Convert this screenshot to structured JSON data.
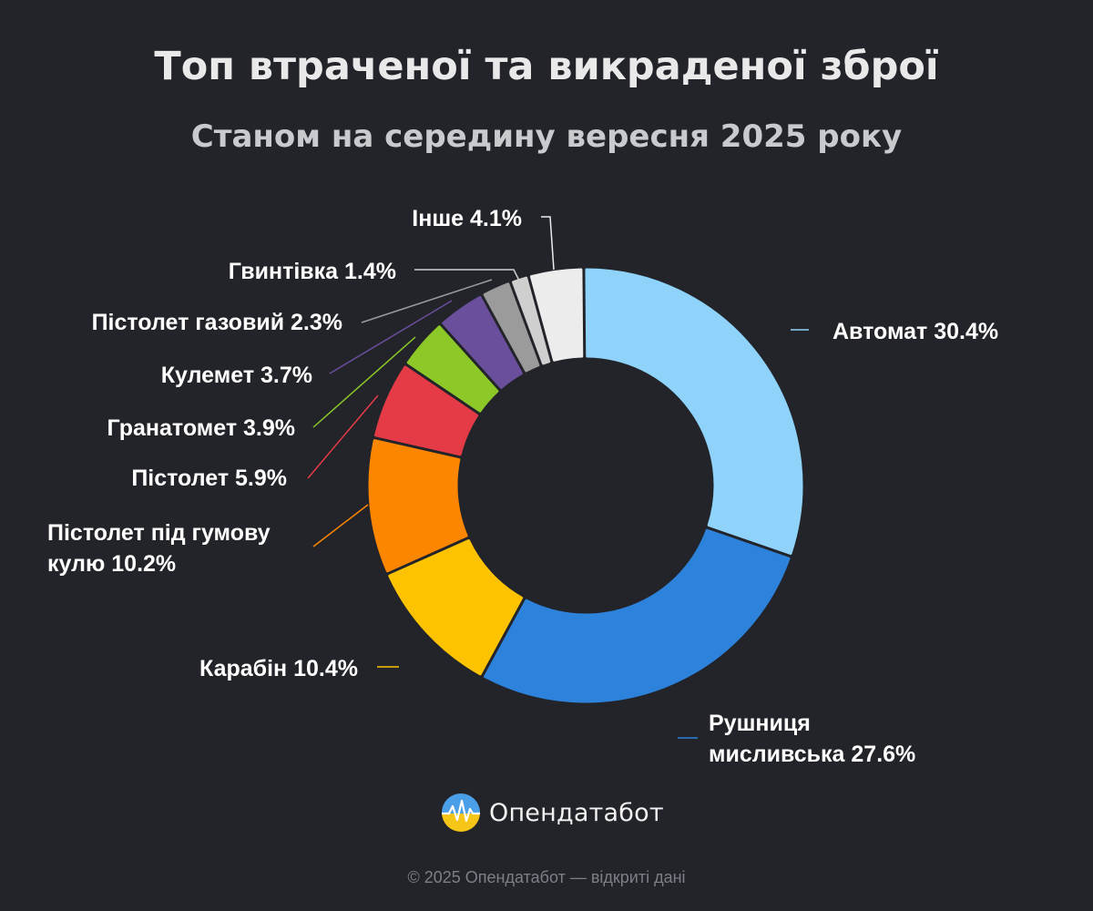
{
  "header": {
    "title": "Топ втраченої та викраденої зброї",
    "subtitle": "Станом на середину вересня 2025 року"
  },
  "chart_data": {
    "type": "pie",
    "variant": "donut",
    "title": "Топ втраченої та викраденої зброї",
    "subtitle": "Станом на середину вересня 2025 року",
    "unit": "%",
    "legend": "none",
    "slices": [
      {
        "name": "Автомат",
        "value": 30.4,
        "color": "#8fd3fb",
        "label": [
          "Автомат 30.4%"
        ]
      },
      {
        "name": "Рушниця мисливська",
        "value": 27.6,
        "color": "#2d82db",
        "label": [
          "Рушниця",
          "мисливська 27.6%"
        ]
      },
      {
        "name": "Карабін",
        "value": 10.4,
        "color": "#fdc300",
        "label": [
          "Карабін 10.4%"
        ]
      },
      {
        "name": "Пістолет під гумову кулю",
        "value": 10.2,
        "color": "#fd8601",
        "label": [
          "Пістолет під гумову",
          "кулю 10.2%"
        ]
      },
      {
        "name": "Пістолет",
        "value": 5.9,
        "color": "#e53b46",
        "label": [
          "Пістолет 5.9%"
        ]
      },
      {
        "name": "Гранатомет",
        "value": 3.9,
        "color": "#8cc928",
        "label": [
          "Гранатомет 3.9%"
        ]
      },
      {
        "name": "Кулемет",
        "value": 3.7,
        "color": "#6a4f9d",
        "label": [
          "Кулемет 3.7%"
        ]
      },
      {
        "name": "Пістолет газовий",
        "value": 2.3,
        "color": "#9b9b9b",
        "label": [
          "Пістолет газовий 2.3%"
        ]
      },
      {
        "name": "Гвинтівка",
        "value": 1.4,
        "color": "#cfcfcf",
        "label": [
          "Гвинтівка 1.4%"
        ]
      },
      {
        "name": "Інше",
        "value": 4.1,
        "color": "#ececec",
        "label": [
          "Інше 4.1%"
        ]
      }
    ]
  },
  "brand": {
    "name": "Опендатабот",
    "logo_icon": "opendatabot-logo-icon",
    "logo_colors": [
      "#4a9fe8",
      "#f5c518"
    ]
  },
  "footer": {
    "text": "© 2025 Опендатабот — відкриті дані"
  }
}
